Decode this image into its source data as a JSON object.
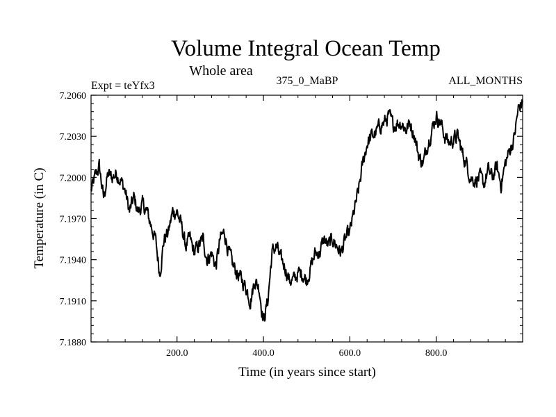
{
  "chart_data": {
    "type": "line",
    "title": "Volume Integral Ocean Temp",
    "subtitle": "Whole area",
    "header_left": "Expt = teYfx3",
    "header_center": "375_0_MaBP",
    "header_right": "ALL_MONTHS",
    "xlabel": "Time (in years since start)",
    "ylabel": "Temperature (in C)",
    "xlim": [
      1,
      1000
    ],
    "ylim": [
      7.188,
      7.206
    ],
    "xticks": [
      200,
      400,
      600,
      800
    ],
    "xtick_labels": [
      "200.0",
      "400.0",
      "600.0",
      "800.0"
    ],
    "yticks": [
      7.188,
      7.191,
      7.194,
      7.197,
      7.2,
      7.203,
      7.206
    ],
    "ytick_labels": [
      "7.1880",
      "7.1910",
      "7.1940",
      "7.1970",
      "7.2000",
      "7.2030",
      "7.2060"
    ],
    "grid": false,
    "series": [
      {
        "name": "Volume integral ocean temperature",
        "x": [
          1,
          10,
          20,
          30,
          40,
          50,
          60,
          70,
          80,
          90,
          100,
          110,
          120,
          130,
          140,
          150,
          160,
          170,
          180,
          190,
          200,
          210,
          220,
          230,
          240,
          250,
          260,
          270,
          280,
          290,
          300,
          310,
          320,
          330,
          340,
          350,
          360,
          370,
          380,
          390,
          400,
          410,
          420,
          430,
          440,
          450,
          460,
          470,
          480,
          490,
          500,
          510,
          520,
          530,
          540,
          550,
          560,
          570,
          580,
          590,
          600,
          610,
          620,
          630,
          640,
          650,
          660,
          670,
          680,
          690,
          700,
          710,
          720,
          730,
          740,
          750,
          760,
          770,
          780,
          790,
          800,
          810,
          820,
          830,
          840,
          850,
          860,
          870,
          880,
          890,
          900,
          910,
          920,
          930,
          940,
          950,
          960,
          970,
          980,
          990,
          1000
        ],
        "y": [
          7.199,
          7.2,
          7.2008,
          7.1985,
          7.2002,
          7.2,
          7.2003,
          7.1998,
          7.199,
          7.1975,
          7.1985,
          7.1975,
          7.198,
          7.1975,
          7.1965,
          7.1955,
          7.193,
          7.1955,
          7.196,
          7.1975,
          7.1975,
          7.1965,
          7.195,
          7.1955,
          7.1945,
          7.195,
          7.1955,
          7.194,
          7.1945,
          7.1935,
          7.1955,
          7.196,
          7.1945,
          7.1935,
          7.193,
          7.1925,
          7.192,
          7.191,
          7.1925,
          7.192,
          7.1895,
          7.191,
          7.1945,
          7.195,
          7.194,
          7.1935,
          7.1925,
          7.1925,
          7.193,
          7.193,
          7.1925,
          7.1935,
          7.1945,
          7.1945,
          7.1955,
          7.195,
          7.1955,
          7.195,
          7.1945,
          7.1955,
          7.196,
          7.1975,
          7.199,
          7.201,
          7.2025,
          7.203,
          7.2032,
          7.2038,
          7.204,
          7.2045,
          7.2038,
          7.204,
          7.204,
          7.2035,
          7.204,
          7.203,
          7.2015,
          7.201,
          7.2025,
          7.2035,
          7.2045,
          7.204,
          7.203,
          7.2025,
          7.2028,
          7.203,
          7.2018,
          7.201,
          7.2,
          7.1998,
          7.2,
          7.1995,
          7.2005,
          7.2,
          7.2008,
          7.1995,
          7.201,
          7.202,
          7.2028,
          7.205,
          7.2055
        ]
      }
    ]
  }
}
